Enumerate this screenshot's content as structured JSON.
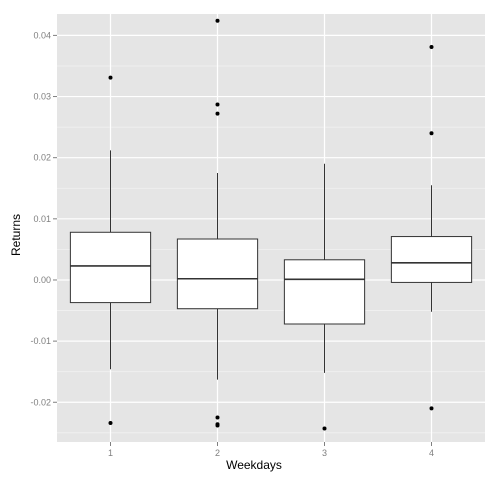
{
  "chart_data": {
    "type": "boxplot",
    "xlabel": "Weekdays",
    "ylabel": "Returns",
    "categories": [
      "1",
      "2",
      "3",
      "4"
    ],
    "ylim": [
      -0.0265,
      0.0435
    ],
    "yticks": [
      -0.02,
      -0.01,
      0.0,
      0.01,
      0.02,
      0.03,
      0.04
    ],
    "ytick_labels": [
      "-0.02",
      "-0.01",
      "0.00",
      "0.01",
      "0.02",
      "0.03",
      "0.04"
    ],
    "grid": true,
    "boxes": [
      {
        "category": "1",
        "whisker_low": -0.0146,
        "q1": -0.0037,
        "median": 0.0023,
        "q3": 0.0078,
        "whisker_high": 0.0212,
        "outliers": [
          0.0331,
          -0.0234
        ]
      },
      {
        "category": "2",
        "whisker_low": -0.0163,
        "q1": -0.0047,
        "median": 0.0002,
        "q3": 0.0067,
        "whisker_high": 0.0175,
        "outliers": [
          0.0424,
          0.0287,
          0.0272,
          -0.0225,
          -0.0236,
          -0.0238
        ]
      },
      {
        "category": "3",
        "whisker_low": -0.0152,
        "q1": -0.0072,
        "median": 0.0001,
        "q3": 0.0033,
        "whisker_high": 0.019,
        "outliers": [
          -0.0243
        ]
      },
      {
        "category": "4",
        "whisker_low": -0.0052,
        "q1": -0.0004,
        "median": 0.0028,
        "q3": 0.0071,
        "whisker_high": 0.0155,
        "outliers": [
          0.0381,
          0.024,
          -0.021
        ]
      }
    ],
    "colors": {
      "panel_background": "#e5e5e5",
      "grid_major": "#ffffff",
      "grid_minor": "#f2f2f2",
      "box_fill": "#ffffff",
      "box_stroke": "#333333",
      "outlier": "#000000",
      "tick_label": "#7f7f7f",
      "tick_mark": "#7f7f7f"
    }
  }
}
